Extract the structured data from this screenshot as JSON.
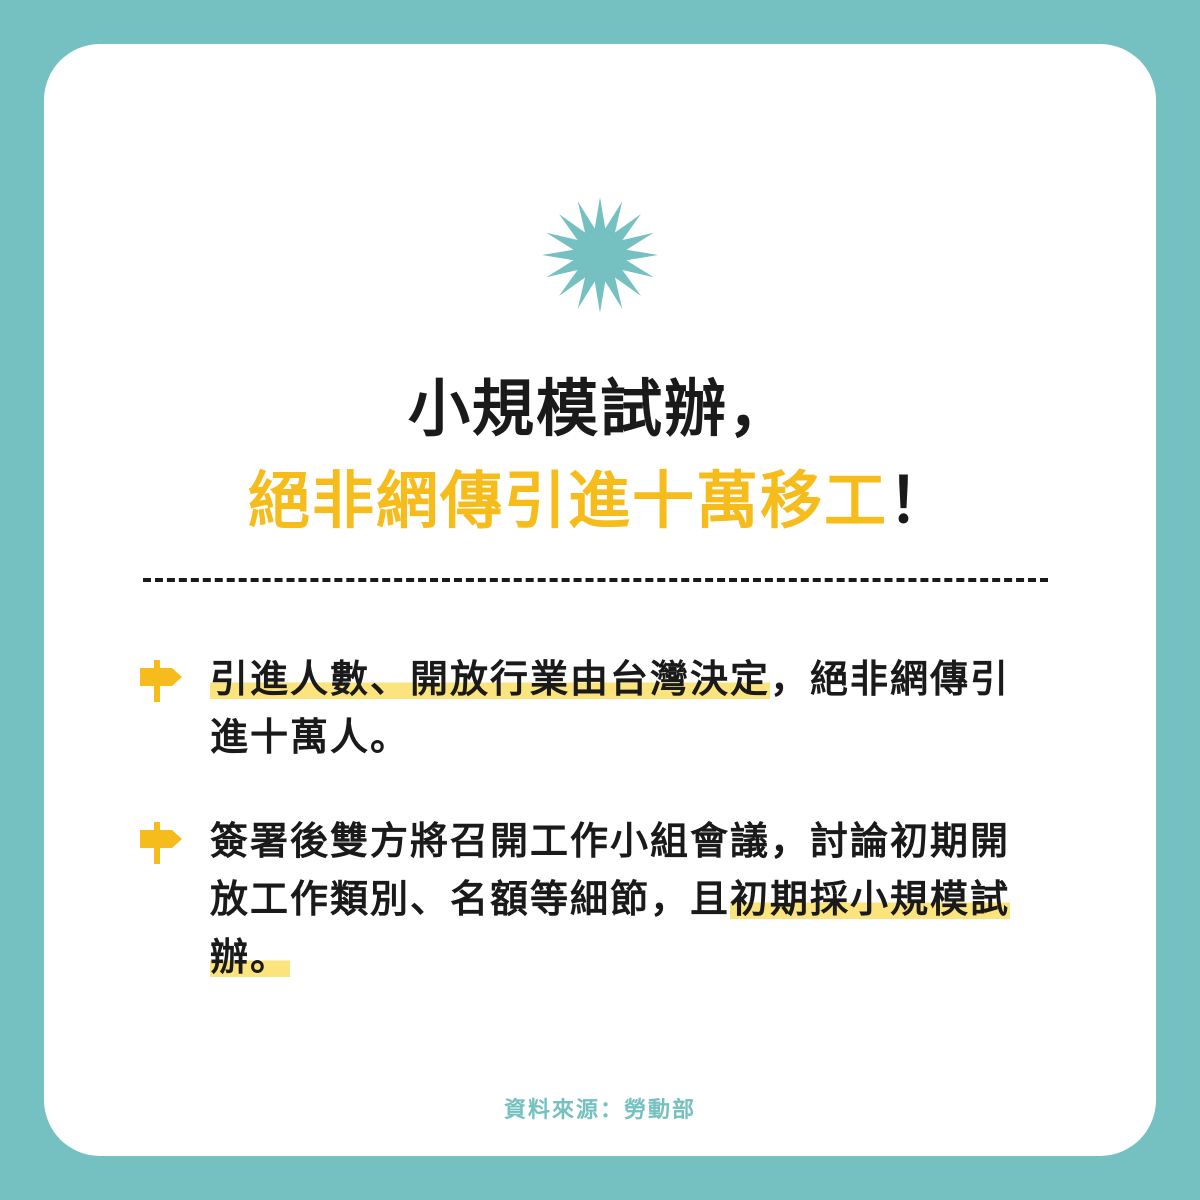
{
  "title": {
    "line1": "小規模試辦，",
    "line2_highlight": "絕非網傳引進十萬移工",
    "line2_end": "！"
  },
  "bullets": [
    {
      "highlight": "引進人數、開放行業由台灣決定",
      "rest": "，絕非網傳引進十萬人。"
    },
    {
      "lead": "簽署後雙方將召開工作小組會議，討論初期開放工作類別、名額等細節，且",
      "highlight": "初期採小規模試辦。"
    }
  ],
  "source": "資料來源：勞動部",
  "icons": {
    "top": "starburst-icon",
    "bullet": "signpost-arrow-icon"
  },
  "colors": {
    "frame": "#75c0c1",
    "accent_yellow": "#f5bc1c",
    "highlight": "#fbe47e",
    "text": "#1a1a1a"
  }
}
